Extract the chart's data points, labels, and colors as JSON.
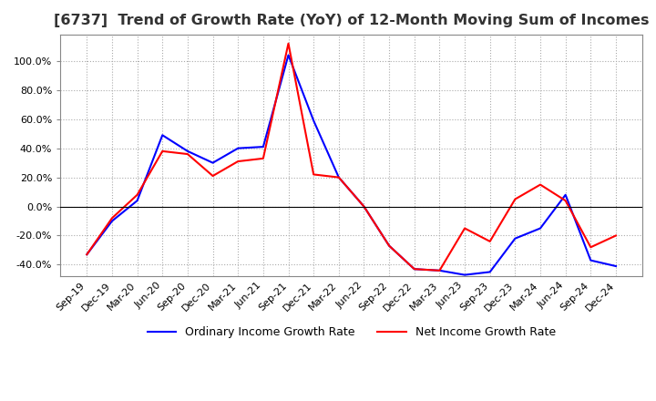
{
  "title": "[6737]  Trend of Growth Rate (YoY) of 12-Month Moving Sum of Incomes",
  "title_fontsize": 11.5,
  "background_color": "#ffffff",
  "grid_color": "#aaaaaa",
  "ylim": [
    -0.48,
    1.18
  ],
  "yticks": [
    -0.4,
    -0.2,
    0.0,
    0.2,
    0.4,
    0.6,
    0.8,
    1.0
  ],
  "ordinary_color": "#0000ff",
  "net_color": "#ff0000",
  "legend_labels": [
    "Ordinary Income Growth Rate",
    "Net Income Growth Rate"
  ],
  "x_labels": [
    "Sep-19",
    "Dec-19",
    "Mar-20",
    "Jun-20",
    "Sep-20",
    "Dec-20",
    "Mar-21",
    "Jun-21",
    "Sep-21",
    "Dec-21",
    "Mar-22",
    "Jun-22",
    "Sep-22",
    "Dec-22",
    "Mar-23",
    "Jun-23",
    "Sep-23",
    "Dec-23",
    "Mar-24",
    "Jun-24",
    "Sep-24",
    "Dec-24"
  ],
  "ordinary_income": [
    -0.33,
    -0.1,
    0.04,
    0.49,
    0.38,
    0.3,
    0.4,
    0.41,
    1.04,
    0.59,
    0.2,
    0.0,
    -0.27,
    -0.43,
    -0.44,
    -0.47,
    -0.45,
    -0.22,
    -0.15,
    0.08,
    -0.37,
    -0.41
  ],
  "net_income": [
    -0.33,
    -0.08,
    0.08,
    0.38,
    0.36,
    0.21,
    0.31,
    0.33,
    1.12,
    0.22,
    0.2,
    0.0,
    -0.27,
    -0.43,
    -0.44,
    -0.15,
    -0.24,
    0.05,
    0.15,
    0.04,
    -0.28,
    -0.2
  ]
}
